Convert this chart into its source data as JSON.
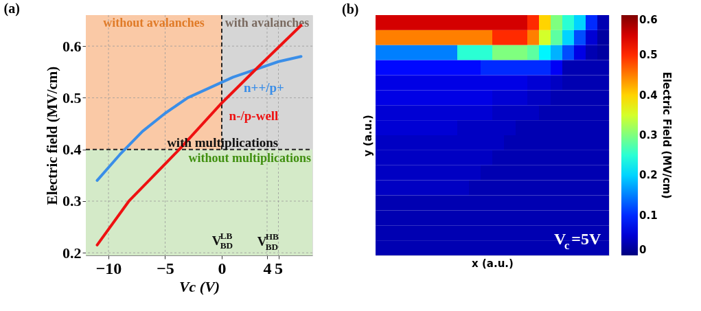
{
  "chart_data": [
    {
      "type": "line",
      "title": "(a)",
      "xlabel": "Vc (V)",
      "ylabel": "Electric field (MV/cm)",
      "xlim": [
        -12,
        8
      ],
      "ylim": [
        0.195,
        0.66
      ],
      "xticks": [
        -10,
        -5,
        0,
        4,
        5
      ],
      "yticks": [
        0.2,
        0.3,
        0.4,
        0.5,
        0.6
      ],
      "grid": true,
      "legend": false,
      "line_style": "solid",
      "marker": "none",
      "series": [
        {
          "name": "n++/p+",
          "color": "#3a8ee8",
          "x": [
            -11,
            -9,
            -7,
            -5,
            -3,
            -1,
            0,
            1,
            3,
            5,
            7
          ],
          "values": [
            0.34,
            0.39,
            0.435,
            0.47,
            0.5,
            0.52,
            0.53,
            0.54,
            0.555,
            0.57,
            0.58
          ]
        },
        {
          "name": "n-/p-well",
          "color": "#ee1111",
          "x": [
            -11,
            -8.2,
            -3.75,
            0,
            3,
            7
          ],
          "values": [
            0.215,
            0.3,
            0.4,
            0.49,
            0.555,
            0.64
          ]
        }
      ],
      "bands": [
        {
          "axis": "x",
          "from": -12,
          "to": 0,
          "label": "without avalanches",
          "color": "#fac9a6"
        },
        {
          "axis": "x",
          "from": 0,
          "to": 8,
          "label": "with avalanches",
          "color": "#d6d6d6"
        },
        {
          "axis": "y",
          "from": 0.195,
          "to": 0.4,
          "label": "without multiplications",
          "color": "#d4eac8"
        }
      ],
      "ref_lines": [
        {
          "axis": "x",
          "value": 0,
          "line_style": "dashed",
          "color": "#222222"
        },
        {
          "axis": "y",
          "value": 0.4,
          "line_style": "dashed",
          "color": "#222222"
        }
      ],
      "annotations": [
        {
          "text": "with multiplications",
          "x": 2.3,
          "y": 0.4
        },
        {
          "text": "V$^{LB}$$_{BD}$",
          "x": 0,
          "y": 0.21
        },
        "V$^{HB}$$_{BD}$"
      ]
    },
    {
      "type": "heatmap",
      "title": "(b)",
      "xlabel": "x (a.u.)",
      "ylabel": "y (a.u.)",
      "clabel": "Electric Field (MV/cm)",
      "tick_labels": false,
      "clim": [
        0,
        0.6
      ],
      "cticks": [
        0,
        0.1,
        0.2,
        0.3,
        0.4,
        0.5,
        0.6
      ],
      "categories": [
        null,
        null,
        null,
        null,
        null,
        null,
        null,
        null,
        null,
        null,
        null,
        null,
        null,
        null,
        null,
        null,
        null,
        null,
        null,
        null
      ],
      "y_categories": [
        null,
        null,
        null,
        null,
        null,
        null,
        null,
        null,
        null,
        null,
        null,
        null,
        null,
        null,
        null,
        null
      ],
      "cells": [
        [
          0.55,
          0.55,
          0.55,
          0.55,
          0.55,
          0.55,
          0.55,
          0.55,
          0.55,
          0.55,
          0.55,
          0.55,
          0.55,
          0.5,
          0.4,
          0.3,
          0.25,
          0.2,
          0.1,
          0.03
        ],
        [
          0.45,
          0.45,
          0.45,
          0.45,
          0.45,
          0.45,
          0.45,
          0.45,
          0.45,
          0.45,
          0.5,
          0.5,
          0.5,
          0.45,
          0.35,
          0.28,
          0.2,
          0.12,
          0.05,
          0.02
        ],
        [
          0.15,
          0.15,
          0.15,
          0.15,
          0.15,
          0.15,
          0.15,
          0.25,
          0.25,
          0.25,
          0.3,
          0.3,
          0.3,
          0.28,
          0.22,
          0.18,
          0.12,
          0.06,
          0.03,
          0.02
        ],
        [
          0.08,
          0.08,
          0.08,
          0.08,
          0.08,
          0.08,
          0.08,
          0.08,
          0.08,
          0.1,
          0.1,
          0.1,
          0.1,
          0.1,
          0.1,
          0.07,
          0.03,
          0.03,
          0.03,
          0.03
        ],
        [
          0.06,
          0.06,
          0.06,
          0.06,
          0.06,
          0.06,
          0.06,
          0.06,
          0.06,
          0.06,
          0.06,
          0.06,
          0.06,
          0.05,
          0.05,
          0.04,
          0.03,
          0.03,
          0.03,
          0.03
        ],
        [
          0.06,
          0.06,
          0.06,
          0.06,
          0.06,
          0.06,
          0.06,
          0.06,
          0.06,
          0.06,
          0.05,
          0.05,
          0.05,
          0.04,
          0.04,
          0.03,
          0.03,
          0.03,
          0.03,
          0.03
        ],
        [
          0.05,
          0.05,
          0.05,
          0.05,
          0.05,
          0.05,
          0.05,
          0.05,
          0.05,
          0.05,
          0.04,
          0.04,
          0.04,
          0.04,
          0.03,
          0.03,
          0.03,
          0.03,
          0.03,
          0.03
        ],
        [
          0.05,
          0.05,
          0.05,
          0.05,
          0.05,
          0.05,
          0.05,
          0.04,
          0.04,
          0.04,
          0.04,
          0.04,
          0.03,
          0.03,
          0.03,
          0.03,
          0.03,
          0.03,
          0.03,
          0.03
        ],
        [
          0.04,
          0.04,
          0.04,
          0.04,
          0.04,
          0.04,
          0.04,
          0.04,
          0.04,
          0.04,
          0.04,
          0.03,
          0.03,
          0.03,
          0.03,
          0.03,
          0.03,
          0.03,
          0.03,
          0.03
        ],
        [
          0.04,
          0.04,
          0.04,
          0.04,
          0.04,
          0.04,
          0.04,
          0.04,
          0.04,
          0.04,
          0.03,
          0.03,
          0.03,
          0.03,
          0.03,
          0.03,
          0.03,
          0.03,
          0.03,
          0.03
        ],
        [
          0.04,
          0.04,
          0.04,
          0.04,
          0.04,
          0.04,
          0.04,
          0.04,
          0.04,
          0.03,
          0.03,
          0.03,
          0.03,
          0.03,
          0.03,
          0.03,
          0.03,
          0.03,
          0.03,
          0.03
        ],
        [
          0.04,
          0.04,
          0.04,
          0.04,
          0.04,
          0.04,
          0.04,
          0.04,
          0.03,
          0.03,
          0.03,
          0.03,
          0.03,
          0.03,
          0.03,
          0.03,
          0.03,
          0.03,
          0.03,
          0.03
        ],
        [
          0.03,
          0.03,
          0.03,
          0.03,
          0.03,
          0.03,
          0.03,
          0.03,
          0.03,
          0.03,
          0.03,
          0.03,
          0.03,
          0.03,
          0.03,
          0.03,
          0.03,
          0.03,
          0.03,
          0.03
        ],
        [
          0.03,
          0.03,
          0.03,
          0.03,
          0.03,
          0.03,
          0.03,
          0.03,
          0.03,
          0.03,
          0.03,
          0.03,
          0.03,
          0.03,
          0.03,
          0.03,
          0.03,
          0.03,
          0.03,
          0.03
        ],
        [
          0.03,
          0.03,
          0.03,
          0.03,
          0.03,
          0.03,
          0.03,
          0.03,
          0.03,
          0.03,
          0.03,
          0.03,
          0.03,
          0.03,
          0.03,
          0.03,
          0.03,
          0.03,
          0.03,
          0.03
        ],
        [
          0.03,
          0.03,
          0.03,
          0.03,
          0.03,
          0.03,
          0.03,
          0.03,
          0.03,
          0.03,
          0.03,
          0.03,
          0.03,
          0.03,
          0.03,
          0.03,
          0.03,
          0.03,
          0.03,
          0.03
        ]
      ],
      "annotations": [
        "V$_{c}$=5V"
      ]
    }
  ]
}
